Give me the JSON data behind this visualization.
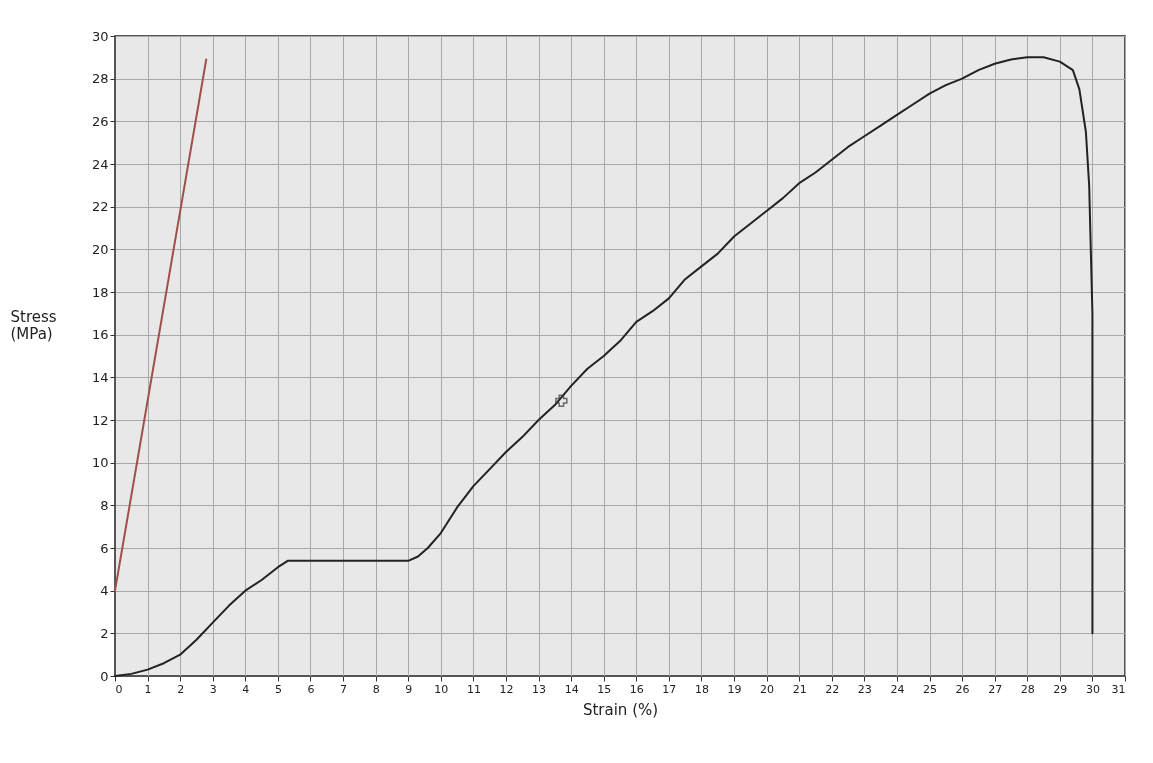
{
  "chart_data": {
    "type": "line",
    "xlabel": "Strain (%)",
    "ylabel": "Stress (MPa)",
    "xlim": [
      0,
      31
    ],
    "ylim": [
      0,
      30
    ],
    "xticks": [
      0,
      1,
      2,
      3,
      4,
      5,
      6,
      7,
      8,
      9,
      10,
      11,
      12,
      13,
      14,
      15,
      16,
      17,
      18,
      19,
      20,
      21,
      22,
      23,
      24,
      25,
      26,
      27,
      28,
      29,
      30,
      31
    ],
    "yticks": [
      0,
      2,
      4,
      6,
      8,
      10,
      12,
      14,
      16,
      18,
      20,
      22,
      24,
      26,
      28,
      30
    ],
    "grid": true,
    "line_style": "solid",
    "series": [
      {
        "color": "#a0504a",
        "x": [
          0,
          2.8
        ],
        "values": [
          4,
          28.9
        ]
      },
      {
        "color": "#222222",
        "x": [
          0,
          0.5,
          1,
          1.5,
          2,
          2.5,
          3,
          3.5,
          4,
          4.5,
          5,
          5.3,
          6,
          7,
          8,
          9,
          9.3,
          9.6,
          10,
          10.5,
          11,
          11.5,
          12,
          12.5,
          13,
          13.5,
          14,
          14.5,
          15,
          15.5,
          16,
          16.5,
          17,
          17.5,
          18,
          18.5,
          19,
          19.5,
          20,
          20.5,
          21,
          21.5,
          22,
          22.5,
          23,
          23.5,
          24,
          24.5,
          25,
          25.5,
          26,
          26.5,
          27,
          27.5,
          28,
          28.5,
          29,
          29.4,
          29.6,
          29.8,
          29.9,
          30,
          30
        ],
        "values": [
          0,
          0.1,
          0.3,
          0.6,
          1.0,
          1.7,
          2.5,
          3.3,
          4.0,
          4.5,
          5.1,
          5.4,
          5.4,
          5.4,
          5.4,
          5.4,
          5.6,
          6.0,
          6.7,
          7.9,
          8.9,
          9.7,
          10.5,
          11.2,
          12.0,
          12.7,
          13.6,
          14.4,
          15.0,
          15.7,
          16.6,
          17.1,
          17.7,
          18.6,
          19.2,
          19.8,
          20.6,
          21.2,
          21.8,
          22.4,
          23.1,
          23.6,
          24.2,
          24.8,
          25.3,
          25.8,
          26.3,
          26.8,
          27.3,
          27.7,
          28.0,
          28.4,
          28.7,
          28.9,
          29.0,
          29.0,
          28.8,
          28.4,
          27.5,
          25.5,
          23,
          17,
          2
        ]
      },
      {
        "type": "scatter",
        "marker": "cross",
        "color": "#333333",
        "x": [
          13.7
        ],
        "values": [
          12.9
        ]
      }
    ]
  }
}
